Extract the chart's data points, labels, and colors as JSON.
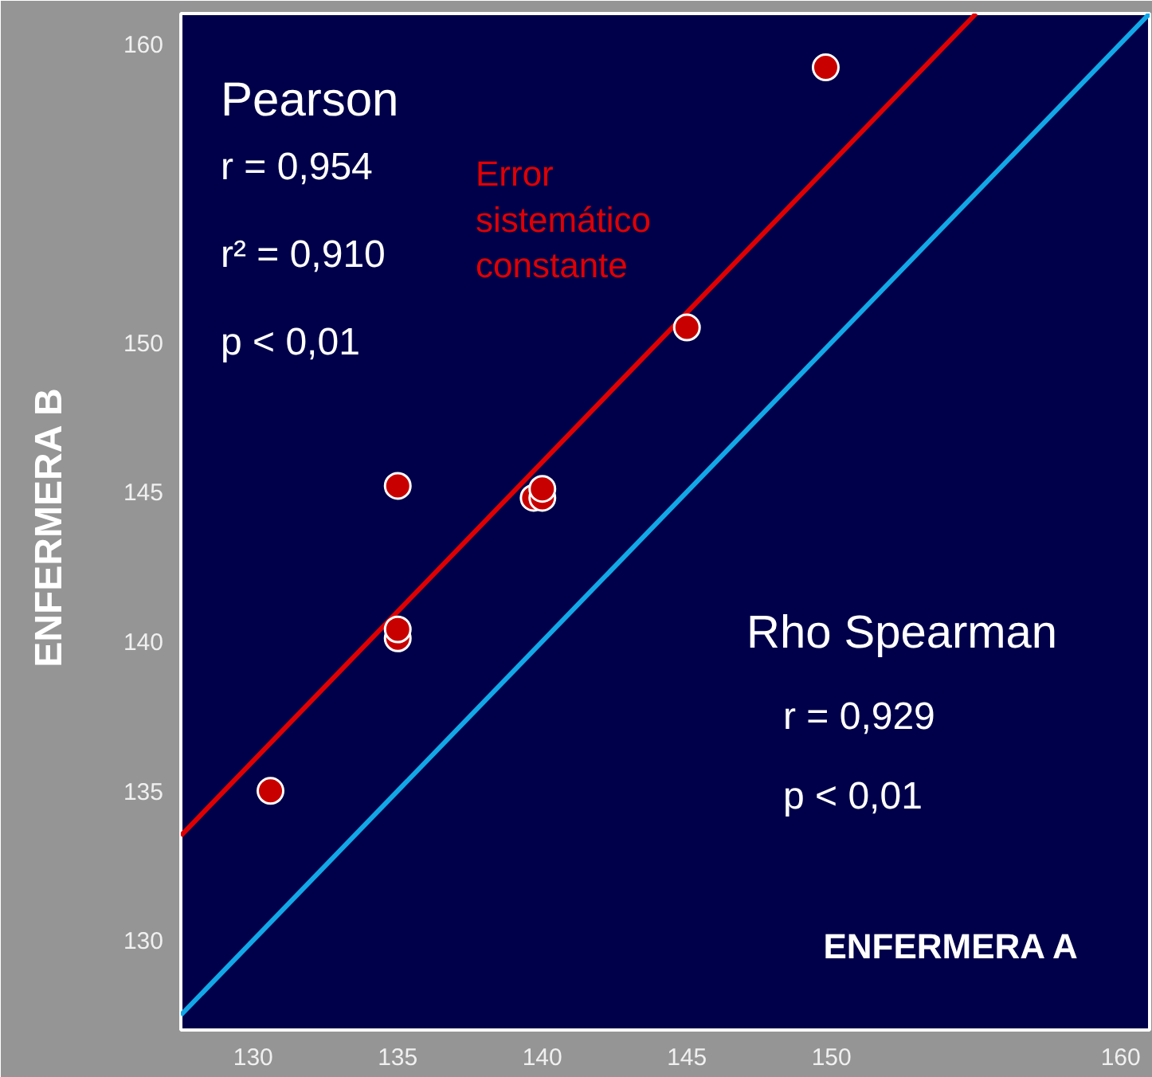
{
  "chart_data": {
    "type": "scatter",
    "xlabel": "ENFERMERA   A",
    "ylabel": "ENFERMERA  B",
    "xlim": [
      127.5,
      161
    ],
    "ylim": [
      127,
      161
    ],
    "xticks": [
      130,
      135,
      140,
      145,
      150,
      160
    ],
    "yticks": [
      130,
      135,
      140,
      145,
      150,
      160
    ],
    "grid": false,
    "series": [
      {
        "type": "line",
        "color": "#e00000",
        "x": [
          127.5,
          155
        ],
        "values": [
          133.5,
          161
        ]
      },
      {
        "type": "line",
        "color": "#12a8e8",
        "x": [
          127.5,
          161
        ],
        "values": [
          127.5,
          161
        ]
      },
      {
        "marker": "circle",
        "color": "#c80000",
        "x": [
          130.6,
          135,
          135,
          135,
          139.7,
          140,
          140,
          145,
          149.8
        ],
        "values": [
          135,
          145.2,
          140.1,
          140.4,
          144.8,
          144.8,
          145.1,
          150.5,
          159.2
        ]
      }
    ],
    "annotations": [
      "Pearson",
      "r = 0,954",
      "r² = 0,910",
      "p < 0,01",
      "Error\nsistemático\nconstante",
      "Rho Spearman",
      "r = 0,929",
      "p < 0,01"
    ]
  }
}
